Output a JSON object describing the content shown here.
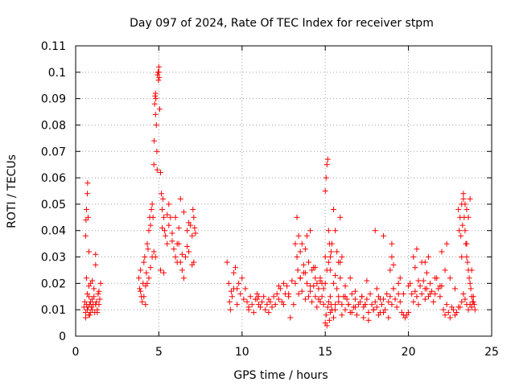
{
  "chart_data": {
    "type": "scatter",
    "title": "Day 097 of 2024, Rate Of TEC Index for receiver stpm",
    "xlabel": "GPS time / hours",
    "ylabel": "ROTI / TECUs",
    "xlim": [
      0,
      25
    ],
    "ylim": [
      0,
      0.11
    ],
    "x_ticks": [
      0,
      5,
      10,
      15,
      20,
      25
    ],
    "x_tick_labels": [
      "0",
      "5",
      "10",
      "15",
      "20",
      "25"
    ],
    "y_ticks": [
      0,
      0.01,
      0.02,
      0.03,
      0.04,
      0.05,
      0.06,
      0.07,
      0.08,
      0.09,
      0.1,
      0.11
    ],
    "y_tick_labels": [
      "0",
      "0.01",
      "0.02",
      "0.03",
      "0.04",
      "0.05",
      "0.06",
      "0.07",
      "0.08",
      "0.09",
      "0.1",
      "0.11"
    ],
    "grid": true,
    "marker": "plus",
    "color": "#ff0000",
    "series": [
      {
        "name": "stpm",
        "x": [
          0.5,
          0.55,
          0.6,
          0.6,
          0.62,
          0.65,
          0.65,
          0.7,
          0.7,
          0.72,
          0.75,
          0.78,
          0.8,
          0.8,
          0.85,
          0.88,
          0.9,
          0.95,
          1.0,
          1.0,
          1.05,
          1.1,
          1.15,
          1.2,
          1.2,
          1.25,
          1.3,
          1.35,
          1.4,
          1.45,
          1.5,
          0.6,
          0.65,
          0.7,
          0.75,
          0.8,
          0.85,
          0.9,
          1.0,
          1.1,
          1.2,
          1.3,
          1.4,
          3.8,
          3.85,
          3.9,
          3.95,
          4.0,
          4.05,
          4.1,
          4.15,
          4.2,
          4.25,
          4.3,
          4.35,
          4.4,
          4.45,
          4.5,
          4.55,
          4.6,
          4.65,
          4.7,
          4.7,
          4.72,
          4.75,
          4.78,
          4.8,
          4.8,
          4.82,
          4.85,
          4.88,
          4.9,
          4.92,
          4.95,
          4.98,
          5.0,
          5.0,
          5.02,
          5.05,
          5.1,
          5.15,
          5.2,
          5.25,
          5.3,
          5.35,
          5.4,
          5.5,
          5.6,
          5.7,
          5.8,
          5.9,
          6.0,
          6.1,
          6.2,
          6.3,
          6.4,
          6.5,
          6.6,
          6.7,
          6.8,
          6.9,
          7.0,
          7.05,
          7.1,
          7.15,
          7.2,
          4.1,
          4.3,
          4.5,
          4.8,
          5.2,
          5.5,
          5.8,
          6.1,
          6.4,
          6.7,
          7.0,
          3.9,
          4.2,
          4.6,
          5.1,
          5.6,
          6.0,
          6.3,
          6.8,
          7.1,
          6.2,
          6.5,
          5.3,
          4.4,
          9.1,
          9.2,
          9.25,
          9.3,
          9.4,
          9.5,
          9.6,
          9.7,
          9.8,
          9.9,
          10.0,
          10.1,
          10.2,
          10.3,
          10.4,
          10.5,
          10.6,
          10.7,
          10.8,
          10.9,
          11.0,
          11.1,
          11.2,
          11.3,
          11.4,
          11.5,
          11.6,
          11.7,
          11.8,
          11.9,
          12.0,
          12.1,
          12.2,
          12.3,
          12.4,
          12.5,
          12.6,
          12.7,
          12.8,
          12.9,
          13.0,
          9.35,
          9.7,
          10.4,
          11.0,
          11.6,
          12.2,
          12.8,
          9.5,
          10.9,
          12.5,
          13.1,
          13.2,
          13.3,
          13.3,
          13.35,
          13.4,
          13.4,
          13.5,
          13.5,
          13.6,
          13.6,
          13.7,
          13.7,
          13.8,
          13.8,
          13.9,
          13.9,
          14.0,
          14.0,
          14.1,
          14.1,
          14.2,
          14.2,
          14.3,
          14.3,
          14.4,
          14.4,
          14.5,
          14.5,
          14.6,
          14.6,
          14.7,
          14.7,
          14.8,
          14.8,
          14.9,
          14.9,
          15.0,
          15.0,
          15.05,
          15.1,
          15.1,
          15.15,
          15.2,
          15.2,
          15.25,
          15.3,
          15.3,
          15.35,
          15.4,
          15.4,
          15.5,
          15.5,
          15.6,
          15.6,
          15.7,
          15.7,
          15.8,
          15.8,
          15.9,
          15.9,
          16.0,
          16.0,
          16.1,
          16.2,
          16.3,
          16.4,
          16.5,
          16.6,
          16.7,
          16.8,
          16.9,
          17.0,
          15.0,
          15.05,
          15.1,
          15.15,
          15.2,
          15.25,
          15.3,
          15.35,
          15.4,
          15.5,
          15.6,
          15.8,
          16.0,
          16.2,
          16.4,
          16.6,
          16.8,
          13.2,
          13.5,
          13.8,
          14.1,
          14.4,
          14.7,
          15.0,
          15.3,
          15.6,
          15.9,
          16.2,
          16.5,
          16.8,
          17.1,
          17.2,
          17.3,
          17.4,
          17.5,
          17.6,
          17.7,
          17.8,
          17.9,
          18.0,
          18.1,
          18.2,
          18.3,
          18.4,
          18.5,
          18.6,
          18.7,
          18.8,
          18.9,
          19.0,
          19.1,
          19.2,
          19.3,
          19.4,
          19.5,
          19.6,
          19.7,
          19.8,
          19.9,
          20.0,
          17.3,
          17.6,
          17.9,
          18.2,
          18.5,
          18.8,
          19.1,
          19.4,
          19.7,
          20.0,
          17.5,
          18.0,
          18.5,
          19.0,
          19.5,
          18.9,
          19.0,
          19.1,
          17.2,
          17.4,
          18.1,
          18.3,
          20.1,
          20.2,
          20.3,
          20.4,
          20.5,
          20.6,
          20.7,
          20.8,
          20.9,
          21.0,
          21.1,
          21.2,
          21.3,
          21.4,
          21.5,
          21.6,
          21.7,
          21.8,
          21.9,
          22.0,
          22.1,
          22.2,
          22.3,
          22.4,
          22.5,
          22.6,
          22.7,
          22.8,
          22.9,
          23.0,
          20.3,
          20.5,
          20.8,
          21.0,
          21.3,
          21.6,
          21.9,
          22.2,
          22.5,
          22.8,
          21.0,
          21.1,
          21.2,
          20.4,
          20.6,
          22.0,
          22.3,
          23.0,
          23.05,
          23.1,
          23.15,
          23.2,
          23.25,
          23.3,
          23.35,
          23.4,
          23.45,
          23.5,
          23.55,
          23.6,
          23.65,
          23.7,
          23.75,
          23.8,
          23.85,
          23.9,
          23.95,
          24.0,
          23.1,
          23.2,
          23.3,
          23.4,
          23.5,
          23.6,
          23.7,
          23.8,
          23.9,
          23.3,
          23.4,
          23.5,
          23.6,
          23.7,
          23.2,
          23.5,
          23.8
        ],
        "y": [
          0.011,
          0.013,
          0.009,
          0.038,
          0.044,
          0.048,
          0.012,
          0.01,
          0.054,
          0.058,
          0.045,
          0.008,
          0.015,
          0.032,
          0.012,
          0.009,
          0.02,
          0.011,
          0.014,
          0.01,
          0.012,
          0.018,
          0.009,
          0.031,
          0.027,
          0.013,
          0.01,
          0.016,
          0.012,
          0.014,
          0.02,
          0.007,
          0.022,
          0.016,
          0.011,
          0.019,
          0.008,
          0.013,
          0.021,
          0.015,
          0.012,
          0.009,
          0.017,
          0.022,
          0.018,
          0.025,
          0.015,
          0.013,
          0.02,
          0.028,
          0.03,
          0.019,
          0.024,
          0.035,
          0.033,
          0.04,
          0.045,
          0.042,
          0.048,
          0.05,
          0.045,
          0.032,
          0.065,
          0.074,
          0.088,
          0.091,
          0.092,
          0.084,
          0.09,
          0.08,
          0.07,
          0.063,
          0.099,
          0.1,
          0.097,
          0.102,
          0.1,
          0.098,
          0.086,
          0.062,
          0.054,
          0.048,
          0.052,
          0.045,
          0.04,
          0.038,
          0.035,
          0.042,
          0.045,
          0.039,
          0.033,
          0.03,
          0.035,
          0.041,
          0.028,
          0.025,
          0.022,
          0.03,
          0.04,
          0.043,
          0.042,
          0.038,
          0.048,
          0.045,
          0.041,
          0.039,
          0.015,
          0.02,
          0.026,
          0.03,
          0.041,
          0.046,
          0.036,
          0.028,
          0.031,
          0.034,
          0.027,
          0.017,
          0.012,
          0.03,
          0.025,
          0.05,
          0.045,
          0.052,
          0.032,
          0.028,
          0.035,
          0.047,
          0.024,
          0.022,
          0.028,
          0.02,
          0.013,
          0.01,
          0.015,
          0.024,
          0.026,
          0.018,
          0.02,
          0.016,
          0.022,
          0.014,
          0.018,
          0.013,
          0.011,
          0.015,
          0.012,
          0.009,
          0.014,
          0.016,
          0.012,
          0.011,
          0.013,
          0.015,
          0.01,
          0.012,
          0.014,
          0.013,
          0.011,
          0.015,
          0.012,
          0.016,
          0.014,
          0.018,
          0.013,
          0.012,
          0.016,
          0.019,
          0.015,
          0.007,
          0.021,
          0.017,
          0.012,
          0.01,
          0.015,
          0.009,
          0.019,
          0.016,
          0.018,
          0.014,
          0.02,
          0.012,
          0.035,
          0.03,
          0.045,
          0.025,
          0.016,
          0.038,
          0.022,
          0.032,
          0.017,
          0.035,
          0.027,
          0.024,
          0.014,
          0.033,
          0.02,
          0.038,
          0.015,
          0.028,
          0.017,
          0.04,
          0.013,
          0.025,
          0.019,
          0.026,
          0.015,
          0.022,
          0.011,
          0.02,
          0.014,
          0.018,
          0.013,
          0.022,
          0.015,
          0.02,
          0.012,
          0.018,
          0.02,
          0.055,
          0.06,
          0.025,
          0.065,
          0.067,
          0.028,
          0.04,
          0.035,
          0.015,
          0.03,
          0.032,
          0.01,
          0.035,
          0.02,
          0.048,
          0.012,
          0.04,
          0.018,
          0.032,
          0.015,
          0.028,
          0.022,
          0.045,
          0.012,
          0.03,
          0.015,
          0.01,
          0.014,
          0.012,
          0.009,
          0.016,
          0.011,
          0.014,
          0.008,
          0.012,
          0.005,
          0.008,
          0.004,
          0.011,
          0.013,
          0.006,
          0.009,
          0.012,
          0.01,
          0.007,
          0.01,
          0.013,
          0.008,
          0.015,
          0.012,
          0.009,
          0.011,
          0.02,
          0.022,
          0.024,
          0.019,
          0.026,
          0.021,
          0.03,
          0.025,
          0.023,
          0.028,
          0.019,
          0.022,
          0.017,
          0.013,
          0.015,
          0.011,
          0.012,
          0.014,
          0.009,
          0.016,
          0.012,
          0.01,
          0.013,
          0.011,
          0.015,
          0.009,
          0.012,
          0.014,
          0.01,
          0.016,
          0.013,
          0.015,
          0.012,
          0.018,
          0.014,
          0.011,
          0.016,
          0.013,
          0.009,
          0.008,
          0.007,
          0.008,
          0.009,
          0.007,
          0.006,
          0.01,
          0.008,
          0.009,
          0.007,
          0.018,
          0.02,
          0.016,
          0.019,
          0.021,
          0.04,
          0.038,
          0.035,
          0.022,
          0.025,
          0.03,
          0.027,
          0.015,
          0.012,
          0.018,
          0.014,
          0.02,
          0.016,
          0.013,
          0.017,
          0.015,
          0.012,
          0.019,
          0.016,
          0.021,
          0.014,
          0.018,
          0.015,
          0.02,
          0.017,
          0.013,
          0.016,
          0.022,
          0.018,
          0.015,
          0.019,
          0.01,
          0.008,
          0.012,
          0.009,
          0.007,
          0.011,
          0.01,
          0.008,
          0.009,
          0.011,
          0.03,
          0.033,
          0.028,
          0.018,
          0.016,
          0.022,
          0.019,
          0.025,
          0.022,
          0.018,
          0.028,
          0.024,
          0.03,
          0.026,
          0.021,
          0.032,
          0.035,
          0.048,
          0.04,
          0.045,
          0.038,
          0.05,
          0.042,
          0.052,
          0.045,
          0.04,
          0.035,
          0.03,
          0.028,
          0.025,
          0.022,
          0.02,
          0.018,
          0.015,
          0.013,
          0.015,
          0.012,
          0.01,
          0.011,
          0.013,
          0.016,
          0.014,
          0.012,
          0.01,
          0.012,
          0.011,
          0.013,
          0.054,
          0.05,
          0.048,
          0.045,
          0.052,
          0.03,
          0.035,
          0.025
        ]
      }
    ]
  }
}
